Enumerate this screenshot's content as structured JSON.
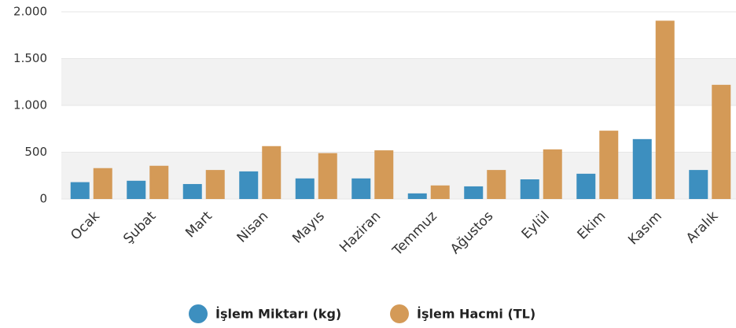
{
  "chart_data": {
    "type": "bar",
    "categories": [
      "Ocak",
      "Şubat",
      "Mart",
      "Nisan",
      "Mayıs",
      "Haziran",
      "Temmuz",
      "Ağustos",
      "Eylül",
      "Ekim",
      "Kasım",
      "Aralık"
    ],
    "series": [
      {
        "name": "İşlem Miktarı (kg)",
        "color": "#3d8fbf",
        "values": [
          180,
          195,
          160,
          295,
          220,
          220,
          60,
          135,
          210,
          270,
          640,
          310
        ]
      },
      {
        "name": "İşlem Hacmi (TL)",
        "color": "#d49a57",
        "values": [
          330,
          355,
          310,
          565,
          490,
          520,
          145,
          310,
          530,
          730,
          1905,
          1220
        ]
      }
    ],
    "ylim": [
      0,
      2000
    ],
    "yticks": [
      0,
      500,
      {
        "value": 1000,
        "label": "1.000"
      },
      {
        "value": 1500,
        "label": "1.500"
      },
      {
        "value": 2000,
        "label": "2.000"
      }
    ],
    "grid": true
  }
}
